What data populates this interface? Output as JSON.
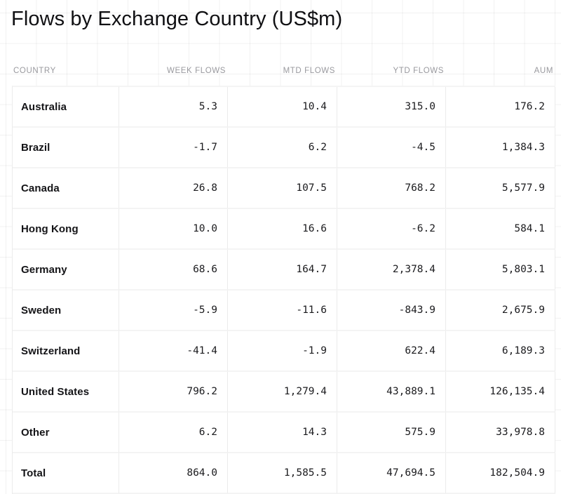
{
  "title": "Flows by Exchange Country (US$m)",
  "colors": {
    "background": "#ffffff",
    "grid_line": "#f1f1f1",
    "cell_border_vertical": "#ebebeb",
    "row_border_horizontal": "#f4f4f4",
    "header_text": "#99999e",
    "country_text": "#141417",
    "value_text": "#1b1b1e",
    "title_text": "#101013"
  },
  "chart_data": {
    "type": "table",
    "title": "Flows by Exchange Country (US$m)",
    "columns": [
      "COUNTRY",
      "WEEK FLOWS",
      "MTD FLOWS",
      "YTD FLOWS",
      "AUM"
    ],
    "rows": [
      {
        "country": "Australia",
        "week_flows": "5.3",
        "mtd_flows": "10.4",
        "ytd_flows": "315.0",
        "aum": "176.2"
      },
      {
        "country": "Brazil",
        "week_flows": "-1.7",
        "mtd_flows": "6.2",
        "ytd_flows": "-4.5",
        "aum": "1,384.3"
      },
      {
        "country": "Canada",
        "week_flows": "26.8",
        "mtd_flows": "107.5",
        "ytd_flows": "768.2",
        "aum": "5,577.9"
      },
      {
        "country": "Hong Kong",
        "week_flows": "10.0",
        "mtd_flows": "16.6",
        "ytd_flows": "-6.2",
        "aum": "584.1"
      },
      {
        "country": "Germany",
        "week_flows": "68.6",
        "mtd_flows": "164.7",
        "ytd_flows": "2,378.4",
        "aum": "5,803.1"
      },
      {
        "country": "Sweden",
        "week_flows": "-5.9",
        "mtd_flows": "-11.6",
        "ytd_flows": "-843.9",
        "aum": "2,675.9"
      },
      {
        "country": "Switzerland",
        "week_flows": "-41.4",
        "mtd_flows": "-1.9",
        "ytd_flows": "622.4",
        "aum": "6,189.3"
      },
      {
        "country": "United States",
        "week_flows": "796.2",
        "mtd_flows": "1,279.4",
        "ytd_flows": "43,889.1",
        "aum": "126,135.4"
      },
      {
        "country": "Other",
        "week_flows": "6.2",
        "mtd_flows": "14.3",
        "ytd_flows": "575.9",
        "aum": "33,978.8"
      },
      {
        "country": "Total",
        "week_flows": "864.0",
        "mtd_flows": "1,585.5",
        "ytd_flows": "47,694.5",
        "aum": "182,504.9"
      }
    ]
  }
}
